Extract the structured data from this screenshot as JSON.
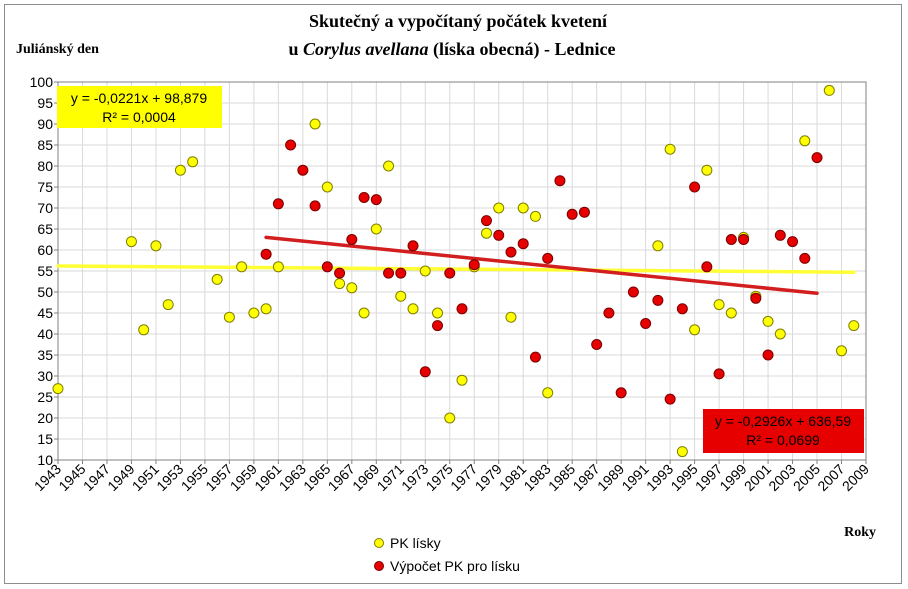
{
  "chart_data": {
    "type": "scatter",
    "title_line1": "Skutečný a vypočítaný počátek kvetení",
    "title_line2_prefix": "u ",
    "title_line2_italic": "Corylus avellana",
    "title_line2_suffix": " (líska obecná) - Lednice",
    "ylabel": "Juliánský den",
    "xlabel": "Roky",
    "xlim": [
      1943,
      2009
    ],
    "ylim": [
      10,
      100
    ],
    "y_ticks": [
      10,
      15,
      20,
      25,
      30,
      35,
      40,
      45,
      50,
      55,
      60,
      65,
      70,
      75,
      80,
      85,
      90,
      95,
      100
    ],
    "x_ticks": [
      1943,
      1945,
      1947,
      1949,
      1951,
      1953,
      1955,
      1957,
      1959,
      1961,
      1963,
      1965,
      1967,
      1969,
      1971,
      1973,
      1975,
      1977,
      1979,
      1981,
      1983,
      1985,
      1987,
      1989,
      1991,
      1993,
      1995,
      1997,
      1999,
      2001,
      2003,
      2005,
      2007,
      2009
    ],
    "grid": true,
    "legend_position": "bottom",
    "series": [
      {
        "name": "PK lísky",
        "color": "#ffff00",
        "points": [
          [
            1943,
            27
          ],
          [
            1949,
            62
          ],
          [
            1950,
            41
          ],
          [
            1951,
            61
          ],
          [
            1952,
            47
          ],
          [
            1953,
            79
          ],
          [
            1954,
            81
          ],
          [
            1956,
            53
          ],
          [
            1957,
            44
          ],
          [
            1958,
            56
          ],
          [
            1959,
            45
          ],
          [
            1960,
            46
          ],
          [
            1961,
            56
          ],
          [
            1964,
            90
          ],
          [
            1965,
            75
          ],
          [
            1966,
            52
          ],
          [
            1967,
            51
          ],
          [
            1968,
            45
          ],
          [
            1969,
            65
          ],
          [
            1970,
            80
          ],
          [
            1971,
            49
          ],
          [
            1972,
            46
          ],
          [
            1973,
            55
          ],
          [
            1974,
            45
          ],
          [
            1975,
            20
          ],
          [
            1976,
            29
          ],
          [
            1977,
            56
          ],
          [
            1978,
            64
          ],
          [
            1979,
            70
          ],
          [
            1980,
            44
          ],
          [
            1981,
            70
          ],
          [
            1982,
            68
          ],
          [
            1983,
            26
          ],
          [
            1992,
            61
          ],
          [
            1993,
            84
          ],
          [
            1994,
            12
          ],
          [
            1995,
            41
          ],
          [
            1996,
            79
          ],
          [
            1997,
            47
          ],
          [
            1998,
            45
          ],
          [
            1999,
            63
          ],
          [
            2000,
            49
          ],
          [
            2001,
            43
          ],
          [
            2002,
            40
          ],
          [
            2004,
            86
          ],
          [
            2006,
            98
          ],
          [
            2007,
            36
          ],
          [
            2008,
            42
          ]
        ]
      },
      {
        "name": "Výpočet PK pro lísku",
        "color": "#e60000",
        "points": [
          [
            1960,
            59
          ],
          [
            1961,
            71
          ],
          [
            1962,
            85
          ],
          [
            1963,
            79
          ],
          [
            1964,
            70.5
          ],
          [
            1965,
            56
          ],
          [
            1966,
            54.5
          ],
          [
            1967,
            62.5
          ],
          [
            1968,
            72.5
          ],
          [
            1969,
            72
          ],
          [
            1970,
            54.5
          ],
          [
            1971,
            54.5
          ],
          [
            1972,
            61
          ],
          [
            1973,
            31
          ],
          [
            1974,
            42
          ],
          [
            1975,
            54.5
          ],
          [
            1976,
            46
          ],
          [
            1977,
            56.5
          ],
          [
            1978,
            67
          ],
          [
            1979,
            63.5
          ],
          [
            1980,
            59.5
          ],
          [
            1981,
            61.5
          ],
          [
            1982,
            34.5
          ],
          [
            1983,
            58
          ],
          [
            1984,
            76.5
          ],
          [
            1985,
            68.5
          ],
          [
            1986,
            69
          ],
          [
            1987,
            37.5
          ],
          [
            1988,
            45
          ],
          [
            1989,
            26
          ],
          [
            1990,
            50
          ],
          [
            1991,
            42.5
          ],
          [
            1992,
            48
          ],
          [
            1993,
            24.5
          ],
          [
            1994,
            46
          ],
          [
            1995,
            75
          ],
          [
            1996,
            56
          ],
          [
            1997,
            30.5
          ],
          [
            1998,
            62.5
          ],
          [
            1999,
            62.5
          ],
          [
            2000,
            48.5
          ],
          [
            2001,
            35
          ],
          [
            2002,
            63.5
          ],
          [
            2003,
            62
          ],
          [
            2004,
            58
          ],
          [
            2005,
            82
          ]
        ]
      }
    ],
    "trendlines": [
      {
        "series": "PK lísky",
        "color": "#ffff33",
        "x": [
          1943,
          2008
        ],
        "y": [
          56.2,
          54.7
        ]
      },
      {
        "series": "Výpočet PK pro lísku",
        "color": "#d21e1e",
        "x": [
          1960,
          2005
        ],
        "y": [
          63.0,
          49.7
        ]
      }
    ],
    "annotations": [
      {
        "line1": "y = -0,0221x + 98,879",
        "line2": "R² = 0,0004",
        "bg": "#ffff00",
        "fg": "#000000"
      },
      {
        "line1": "y = -0,2926x + 636,59",
        "line2": "R² = 0,0699",
        "bg": "#e60000",
        "fg": "#000000"
      }
    ]
  }
}
